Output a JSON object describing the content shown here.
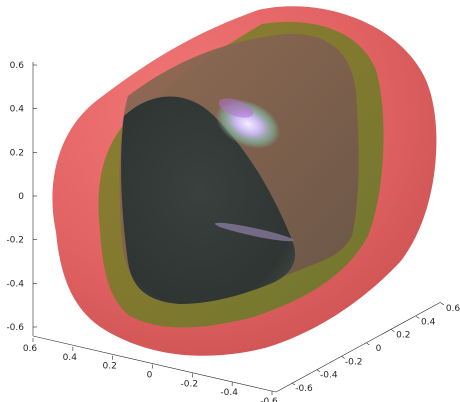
{
  "chart_data": {
    "type": "surface3d",
    "title": "",
    "xlabel": "",
    "ylabel": "",
    "zlabel": "",
    "axes": {
      "z": {
        "ticks": [
          0.6,
          0.4,
          0.2,
          0,
          -0.2,
          -0.4,
          -0.6
        ],
        "labels": [
          "0.6",
          "0.4",
          "0.2",
          "0",
          "-0.2",
          "-0.4",
          "-0.6"
        ],
        "range": [
          -0.6,
          0.6
        ]
      },
      "x": {
        "ticks": [
          0.6,
          0.4,
          0.2,
          0,
          -0.2,
          -0.4,
          -0.6
        ],
        "labels": [
          "0.6",
          "0.4",
          "0.2",
          "0",
          "-0.2",
          "-0.4",
          "-0.6"
        ],
        "range": [
          -0.6,
          0.6
        ]
      },
      "y": {
        "ticks": [
          -0.6,
          -0.4,
          -0.2,
          0,
          0.2,
          0.4,
          0.6
        ],
        "labels": [
          "-0.6",
          "-0.4",
          "-0.2",
          "0",
          "0.2",
          "0.4",
          "0.6"
        ],
        "range": [
          -0.6,
          0.6
        ]
      }
    },
    "surfaces": [
      {
        "name": "",
        "shape": "rounded-cylinder shell",
        "color": "#e05656",
        "opacity": 0.9
      },
      {
        "name": "",
        "shape": "rounded-cylinder shell",
        "color": "#7b7a2e",
        "opacity": 0.9
      },
      {
        "name": "",
        "shape": "inner cavity",
        "color": "#3a3e3c",
        "opacity": 0.95
      }
    ],
    "grid": false,
    "legend": "none"
  }
}
